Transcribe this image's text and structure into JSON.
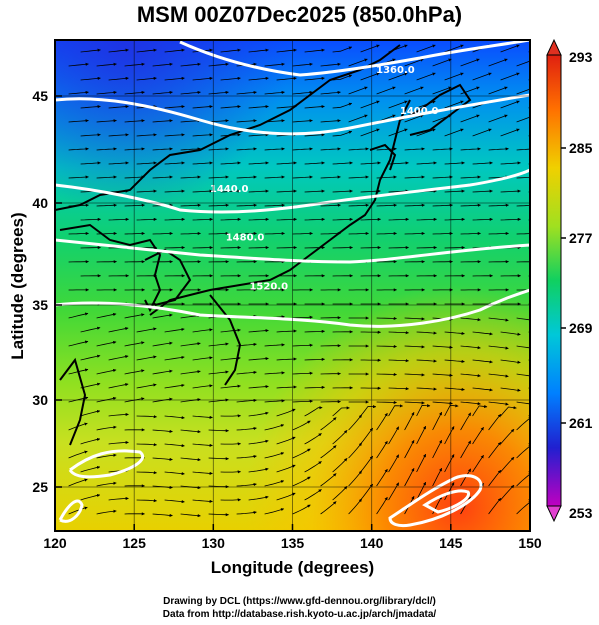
{
  "title": "MSM 00Z07Dec2025 (850.0hPa)",
  "chart_data": {
    "type": "heatmap",
    "xlabel": "Longitude (degrees)",
    "ylabel": "Latitude  (degrees)",
    "xlim": [
      120,
      150
    ],
    "ylim": [
      22.4,
      47.6
    ],
    "x_ticks": [
      "120",
      "125",
      "130",
      "135",
      "140",
      "145",
      "150"
    ],
    "y_ticks": [
      "25",
      "30",
      "35",
      "40",
      "45"
    ],
    "colorbar": {
      "ticks": [
        "293",
        "285",
        "277",
        "269",
        "261",
        "253"
      ],
      "range": [
        253,
        293
      ]
    },
    "contours": [
      {
        "label": "1360.0",
        "lon": 141.5,
        "lat": 45.9
      },
      {
        "label": "1400.0",
        "lon": 143.0,
        "lat": 43.8
      },
      {
        "label": "1440.0",
        "lon": 131.0,
        "lat": 39.8
      },
      {
        "label": "1480.0",
        "lon": 132.0,
        "lat": 37.3
      },
      {
        "label": "1520.0",
        "lon": 133.5,
        "lat": 34.8
      }
    ],
    "color_scale": [
      "#c000c0",
      "#4020e0",
      "#0050ff",
      "#00c8d8",
      "#10d060",
      "#a0e020",
      "#f0d000",
      "#ff7000",
      "#e02010"
    ]
  },
  "footer": {
    "line1": "Drawing by DCL (https://www.gfd-dennou.org/library/dcl/)",
    "line2": "Data from http://database.rish.kyoto-u.ac.jp/arch/jmadata/"
  }
}
